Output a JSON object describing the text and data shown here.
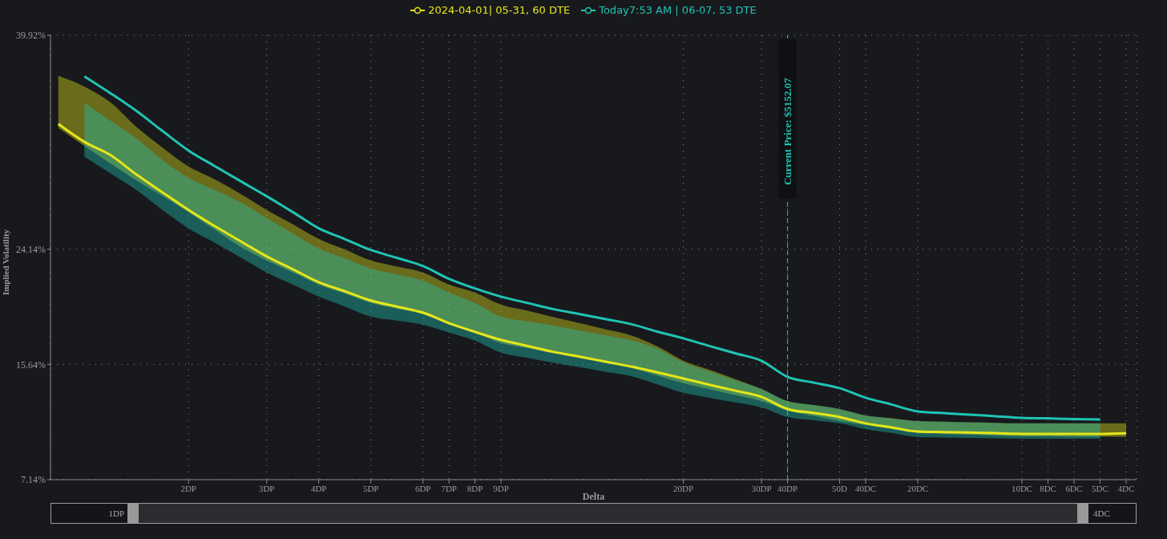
{
  "chart_data": {
    "type": "line",
    "xlabel": "Delta",
    "ylabel": "Implied Volatility",
    "categories": [
      null,
      null,
      null,
      null,
      null,
      "2DP",
      null,
      null,
      "3DP",
      null,
      "4DP",
      null,
      "5DP",
      null,
      "6DP",
      "7DP",
      "8DP",
      "9DP",
      null,
      null,
      null,
      null,
      null,
      null,
      "20DP",
      null,
      null,
      "30DP",
      "40DP",
      null,
      "50D",
      "40DC",
      null,
      "20DC",
      null,
      null,
      null,
      "10DC",
      "8DC",
      "6DC",
      "5DC",
      "4DC"
    ],
    "ylim": [
      7.14,
      39.92
    ],
    "yticks": [
      {
        "value": 7.14,
        "label": "7.14%"
      },
      {
        "value": 15.64,
        "label": "15.64%"
      },
      {
        "value": 24.14,
        "label": "24.14%"
      },
      {
        "value": 39.92,
        "label": "39.92%"
      }
    ],
    "grid": true,
    "legend": "top",
    "line_style": "solid",
    "series": [
      {
        "name": "2024-04-01| 05-31, 60 DTE",
        "color": "#e6e619",
        "values": [
          33.38,
          32.06,
          31.09,
          29.65,
          28.33,
          27.04,
          25.85,
          24.73,
          23.61,
          22.67,
          21.71,
          21.04,
          20.35,
          19.91,
          19.46,
          18.69,
          18.04,
          17.45,
          17.01,
          16.57,
          16.22,
          15.85,
          15.48,
          15.05,
          14.6,
          14.14,
          13.7,
          13.24,
          12.35,
          12.06,
          11.76,
          11.29,
          10.99,
          10.69,
          10.65,
          10.61,
          10.57,
          10.52,
          10.52,
          10.52,
          10.52,
          10.56
        ],
        "upper": [
          36.93,
          36.14,
          34.98,
          33.16,
          31.64,
          30.24,
          29.3,
          28.22,
          27.04,
          25.99,
          24.91,
          24.12,
          23.31,
          22.87,
          22.42,
          21.53,
          20.94,
          20.05,
          19.61,
          19.13,
          18.69,
          18.23,
          17.77,
          16.97,
          15.91,
          15.25,
          14.55,
          13.83,
          12.94,
          12.65,
          12.35,
          11.88,
          11.67,
          11.46,
          11.42,
          11.37,
          11.33,
          11.29,
          11.29,
          11.29,
          11.29,
          11.29
        ],
        "lower": [
          33.08,
          31.76,
          30.47,
          29.21,
          28.07,
          26.86,
          25.58,
          24.31,
          23.31,
          22.43,
          21.53,
          20.86,
          20.17,
          19.76,
          19.34,
          18.57,
          17.98,
          17.21,
          16.84,
          16.46,
          16.1,
          15.73,
          15.36,
          14.82,
          14.25,
          13.81,
          13.38,
          12.94,
          12.23,
          11.85,
          11.46,
          11.17,
          10.88,
          10.58,
          10.52,
          10.46,
          10.4,
          10.34,
          10.33,
          10.31,
          10.3,
          10.29
        ]
      },
      {
        "name": "Today7:53 AM | 06-07, 53 DTE",
        "color": "#1fc4b4",
        "values": [
          null,
          36.89,
          35.65,
          34.34,
          32.86,
          31.42,
          30.28,
          29.16,
          28.05,
          26.88,
          25.68,
          24.89,
          24.08,
          23.5,
          22.9,
          21.95,
          21.24,
          20.64,
          20.18,
          19.72,
          19.36,
          18.99,
          18.61,
          18.06,
          17.56,
          17.0,
          16.46,
          15.91,
          14.72,
          14.3,
          13.89,
          13.18,
          12.68,
          12.17,
          12.05,
          11.93,
          11.82,
          11.7,
          11.66,
          11.61,
          11.58,
          null
        ],
        "upper": [
          null,
          34.94,
          33.63,
          32.31,
          30.72,
          29.41,
          28.51,
          27.59,
          26.45,
          25.3,
          24.2,
          23.47,
          22.72,
          22.28,
          21.83,
          20.94,
          20.17,
          19.16,
          18.82,
          18.51,
          18.15,
          17.79,
          17.43,
          16.8,
          15.79,
          15.13,
          14.47,
          13.83,
          12.94,
          12.65,
          12.35,
          11.88,
          11.67,
          11.46,
          11.42,
          11.37,
          11.33,
          11.29,
          11.29,
          11.29,
          11.29,
          null
        ],
        "lower": [
          null,
          30.97,
          29.74,
          28.5,
          27.04,
          25.68,
          24.62,
          23.53,
          22.42,
          21.54,
          20.64,
          19.91,
          19.16,
          18.87,
          18.57,
          17.98,
          17.39,
          16.5,
          16.13,
          15.76,
          15.44,
          15.1,
          14.77,
          14.16,
          13.54,
          13.18,
          12.83,
          12.47,
          11.76,
          11.53,
          11.29,
          10.87,
          10.58,
          10.28,
          10.25,
          10.22,
          10.19,
          10.16,
          10.16,
          10.16,
          10.16,
          null
        ]
      }
    ],
    "ref_lines": [
      {
        "axis": "x",
        "value": "40DP",
        "label": "Current Price: $5152.07",
        "color": "#1fc4b4",
        "line_style": "dashed"
      }
    ],
    "annotations": [
      "1DP",
      "4DC"
    ]
  }
}
